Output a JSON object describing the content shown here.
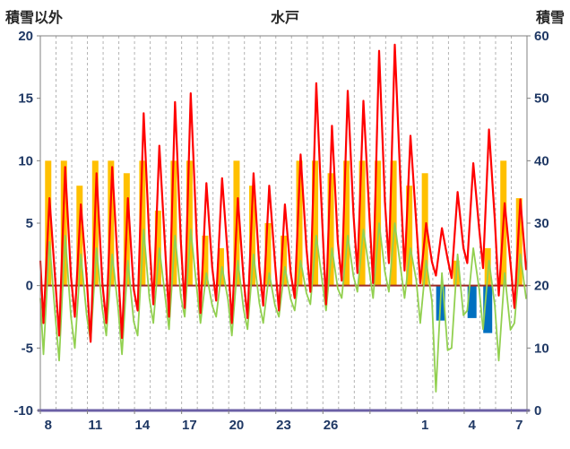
{
  "chart_data": {
    "type": "line",
    "title": "水戸",
    "left_axis": {
      "title": "積雪以外",
      "min": -10,
      "max": 20,
      "ticks": [
        20,
        15,
        10,
        5,
        0,
        -5,
        -10
      ]
    },
    "right_axis": {
      "title": "積雪",
      "min": 0,
      "max": 60,
      "ticks": [
        60,
        50,
        40,
        30,
        20,
        10,
        0
      ]
    },
    "x_axis": {
      "days": 31,
      "tick_labels": [
        "8",
        "11",
        "14",
        "17",
        "20",
        "23",
        "26",
        "1",
        "4",
        "7"
      ],
      "tick_day_indices": [
        0,
        3,
        6,
        9,
        12,
        15,
        18,
        24,
        27,
        30
      ],
      "grid": "dashed-vertical-per-day"
    },
    "series": [
      {
        "name": "orange_bars",
        "kind": "bar-up",
        "axis": "left",
        "color_key": "orange",
        "daily_values": [
          10,
          10,
          8,
          10,
          10,
          9,
          10,
          6,
          10,
          10,
          4,
          3,
          10,
          8,
          5,
          4,
          10,
          10,
          9,
          10,
          10,
          10,
          10,
          8,
          9,
          0,
          2,
          0,
          3,
          10,
          7
        ]
      },
      {
        "name": "blue_bars",
        "kind": "bar-down",
        "axis": "left",
        "color_key": "blue",
        "daily_values": [
          0,
          0,
          0,
          0,
          0,
          0,
          0,
          0,
          0,
          0,
          0,
          0,
          0,
          0,
          0,
          0,
          0,
          0,
          0,
          0,
          0,
          0,
          0,
          0,
          0,
          2.8,
          0,
          2.6,
          3.8,
          0,
          0
        ]
      },
      {
        "name": "green_line",
        "kind": "line",
        "axis": "left",
        "color_key": "green",
        "stroke_width": 1.8,
        "daily_min": [
          -5.5,
          -6,
          -5,
          -4.5,
          -4,
          -5.5,
          -4,
          -3,
          -3.5,
          -2.5,
          -3,
          -2.5,
          -4,
          -3.5,
          -3,
          -2.5,
          -2,
          -1.5,
          -2,
          -1,
          -0.5,
          -1,
          -0.5,
          -1,
          -3,
          -8.5,
          -5,
          -2,
          -3.5,
          -6,
          -3
        ],
        "daily_max": [
          3.5,
          4,
          2.5,
          3,
          2.5,
          2,
          4.5,
          3,
          4,
          4.5,
          1,
          1.5,
          2,
          2.5,
          1,
          1.5,
          2,
          4,
          3,
          4,
          4.5,
          5,
          5,
          3,
          2,
          1,
          2.5,
          3,
          2,
          1,
          2.5
        ]
      },
      {
        "name": "red_line",
        "kind": "line",
        "axis": "left",
        "color_key": "red",
        "stroke_width": 2.2,
        "daily_min": [
          -3,
          -4,
          -2.5,
          -4.5,
          -3,
          -4.2,
          -2,
          -1.5,
          -2.5,
          -1.8,
          -2.2,
          -1.2,
          -3,
          -2.6,
          -1.6,
          -2,
          -1,
          -0.5,
          -1.5,
          0.4,
          1,
          0.2,
          1.8,
          1.2,
          0.2,
          0.8,
          0.6,
          1.8,
          1.4,
          -0.8,
          -1.8
        ],
        "daily_max": [
          7,
          9.5,
          6.5,
          9,
          9.5,
          7,
          13.8,
          11.2,
          14.7,
          15.4,
          8.2,
          8.6,
          7,
          9,
          8,
          6.5,
          10.5,
          16.2,
          12.8,
          15.6,
          14.8,
          18.8,
          19.3,
          12,
          5,
          4.6,
          7.5,
          9.8,
          12.5,
          6.6,
          6.9
        ]
      }
    ]
  },
  "colors": {
    "red": "#FF0000",
    "green": "#92D050",
    "orange": "#FFC000",
    "blue": "#0070C0",
    "zero_line": "#9E2B25",
    "axis_bottom": "#6B5FA5",
    "grid": "#B3B3B3",
    "border": "#808080",
    "tick_label": "#1F3864",
    "title": "#262626",
    "background": "#FFFFFF"
  }
}
